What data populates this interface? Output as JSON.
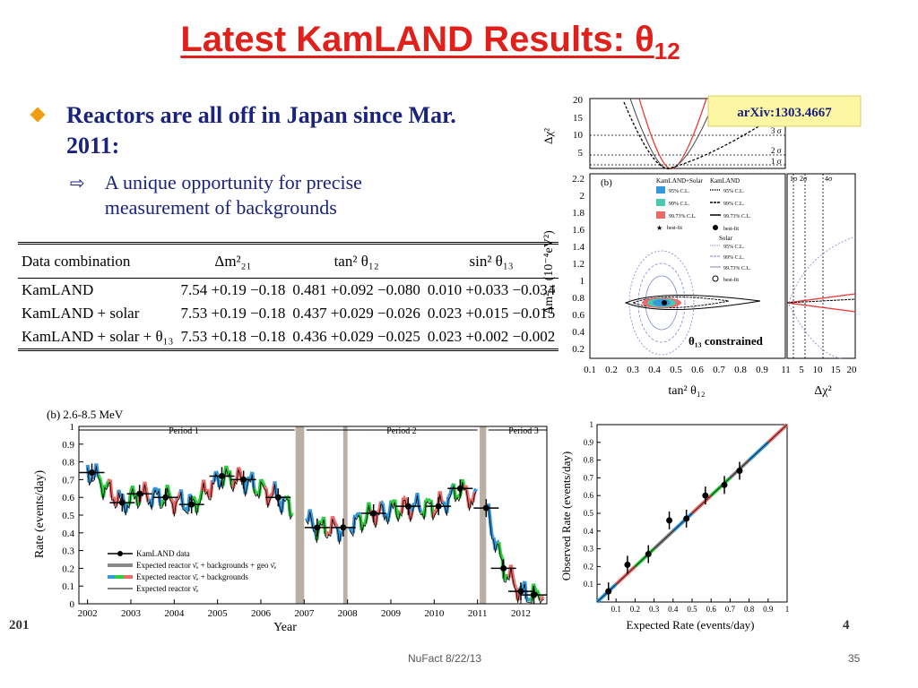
{
  "title": {
    "main": "Latest KamLAND Results: θ",
    "sub": "12"
  },
  "bullets": {
    "main": "Reactors are all off in Japan since Mar. 2011:",
    "sub": "A unique opportunity for precise measurement of backgrounds"
  },
  "table": {
    "headers": [
      "Data combination",
      "Δm²₂₁",
      "tan² θ₁₂",
      "sin² θ₁₃"
    ],
    "rows": [
      [
        "KamLAND",
        "7.54 +0.19 −0.18",
        "0.481 +0.092 −0.080",
        "0.010 +0.033 −0.034"
      ],
      [
        "KamLAND + solar",
        "7.53 +0.19 −0.18",
        "0.437 +0.029 −0.026",
        "0.023 +0.015 −0.015"
      ],
      [
        "KamLAND + solar + θ₁₃",
        "7.53 +0.18 −0.18",
        "0.436 +0.029 −0.025",
        "0.023 +0.002 −0.002"
      ]
    ]
  },
  "contour": {
    "arxiv": "arXiv:1303.4667",
    "panel_label": "(b)",
    "constrained_label": "θ₁₃ constrained",
    "xlabel": "tan² θ₁₂",
    "ylabel": "Δm²₂₁ (10⁻⁴eV²)",
    "top_ylabel": "Δχ²",
    "right_xlabel": "Δχ²",
    "sigma_labels": [
      "3 σ",
      "2 σ",
      "1 σ"
    ],
    "legend": {
      "col1_title": "KamLAND+Solar",
      "col2_title": "KamLAND",
      "items": [
        "95% C.L.",
        "99% C.L.",
        "99.73% C.L.",
        "best-fit"
      ],
      "solar_title": "Solar",
      "solar_items": [
        "95% C.L.",
        "99% C.L.",
        "99.73% C.L.",
        "best-fit"
      ]
    },
    "colors": {
      "c95": "#3498db",
      "c99": "#48c9b0",
      "c9973": "#ec6a6a"
    }
  },
  "timeseries": {
    "label": "(b) 2.6-8.5 MeV",
    "ylabel": "Rate (events/day)",
    "xlabel": "Year",
    "periods": [
      "Period 1",
      "Period 2",
      "Period 3"
    ],
    "legend": [
      "KamLAND data",
      "Expected reactor ν̄ₑ + backgrounds + geo ν̄ₑ",
      "Expected reactor ν̄ₑ + backgrounds",
      "Expected reactor ν̄ₑ"
    ]
  },
  "scatter": {
    "xlabel": "Expected Rate (events/day)",
    "ylabel": "Observed Rate (events/day)"
  },
  "chart_data": [
    {
      "type": "line",
      "x": [
        2002,
        2003,
        2004,
        2005,
        2006,
        2007,
        2008,
        2009,
        2010,
        2011,
        2012
      ],
      "xlim": [
        2001.8,
        2012.6
      ],
      "ylim": [
        0,
        1
      ],
      "yticks": [
        0,
        0.1,
        0.2,
        0.3,
        0.4,
        0.5,
        0.6,
        0.7,
        0.8,
        0.9,
        1
      ],
      "series": [
        {
          "name": "KamLAND data",
          "x": [
            2002.1,
            2002.8,
            2003.2,
            2003.8,
            2004.4,
            2005.1,
            2005.6,
            2006.4,
            2007.3,
            2007.9,
            2008.6,
            2009.4,
            2010.1,
            2010.6,
            2011.2,
            2011.6,
            2012.0,
            2012.3
          ],
          "y": [
            0.74,
            0.57,
            0.62,
            0.6,
            0.56,
            0.72,
            0.7,
            0.6,
            0.43,
            0.43,
            0.51,
            0.55,
            0.55,
            0.65,
            0.54,
            0.2,
            0.07,
            0.05
          ]
        }
      ]
    },
    {
      "type": "scatter",
      "xlim": [
        0,
        1
      ],
      "ylim": [
        0,
        1
      ],
      "ticks": [
        0.1,
        0.2,
        0.3,
        0.4,
        0.5,
        0.6,
        0.7,
        0.8,
        0.9,
        1
      ],
      "series": [
        {
          "name": "KamLAND data",
          "x": [
            0.06,
            0.16,
            0.27,
            0.38,
            0.47,
            0.57,
            0.67,
            0.75
          ],
          "y": [
            0.06,
            0.21,
            0.27,
            0.46,
            0.47,
            0.6,
            0.66,
            0.74
          ]
        }
      ]
    }
  ],
  "footer": {
    "center": "NuFact  8/22/13",
    "page": "35",
    "left_edge": "201",
    "right_edge": "4"
  }
}
